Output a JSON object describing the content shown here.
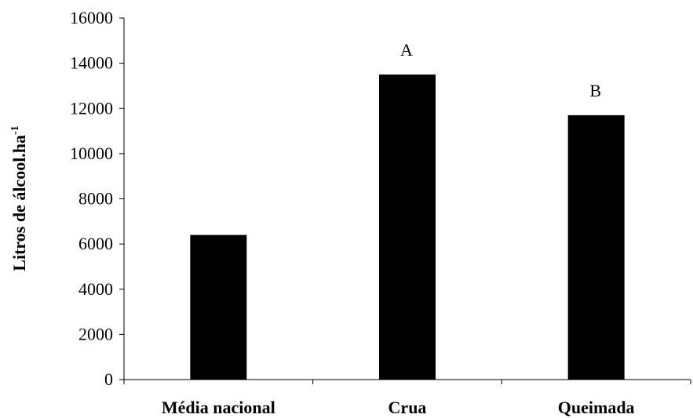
{
  "chart_data": {
    "type": "bar",
    "categories": [
      "Média nacional",
      "Crua",
      "Queimada"
    ],
    "values": [
      6400,
      13500,
      11700
    ],
    "annotations": [
      "",
      "A",
      "B"
    ],
    "ylabel": "Litros de álcool.ha",
    "ylabel_superscript": "-1",
    "ylim": [
      0,
      16000
    ],
    "yticks": [
      0,
      2000,
      4000,
      6000,
      8000,
      10000,
      12000,
      14000,
      16000
    ],
    "bar_color": "#000000",
    "grid": false,
    "legend": "none"
  }
}
